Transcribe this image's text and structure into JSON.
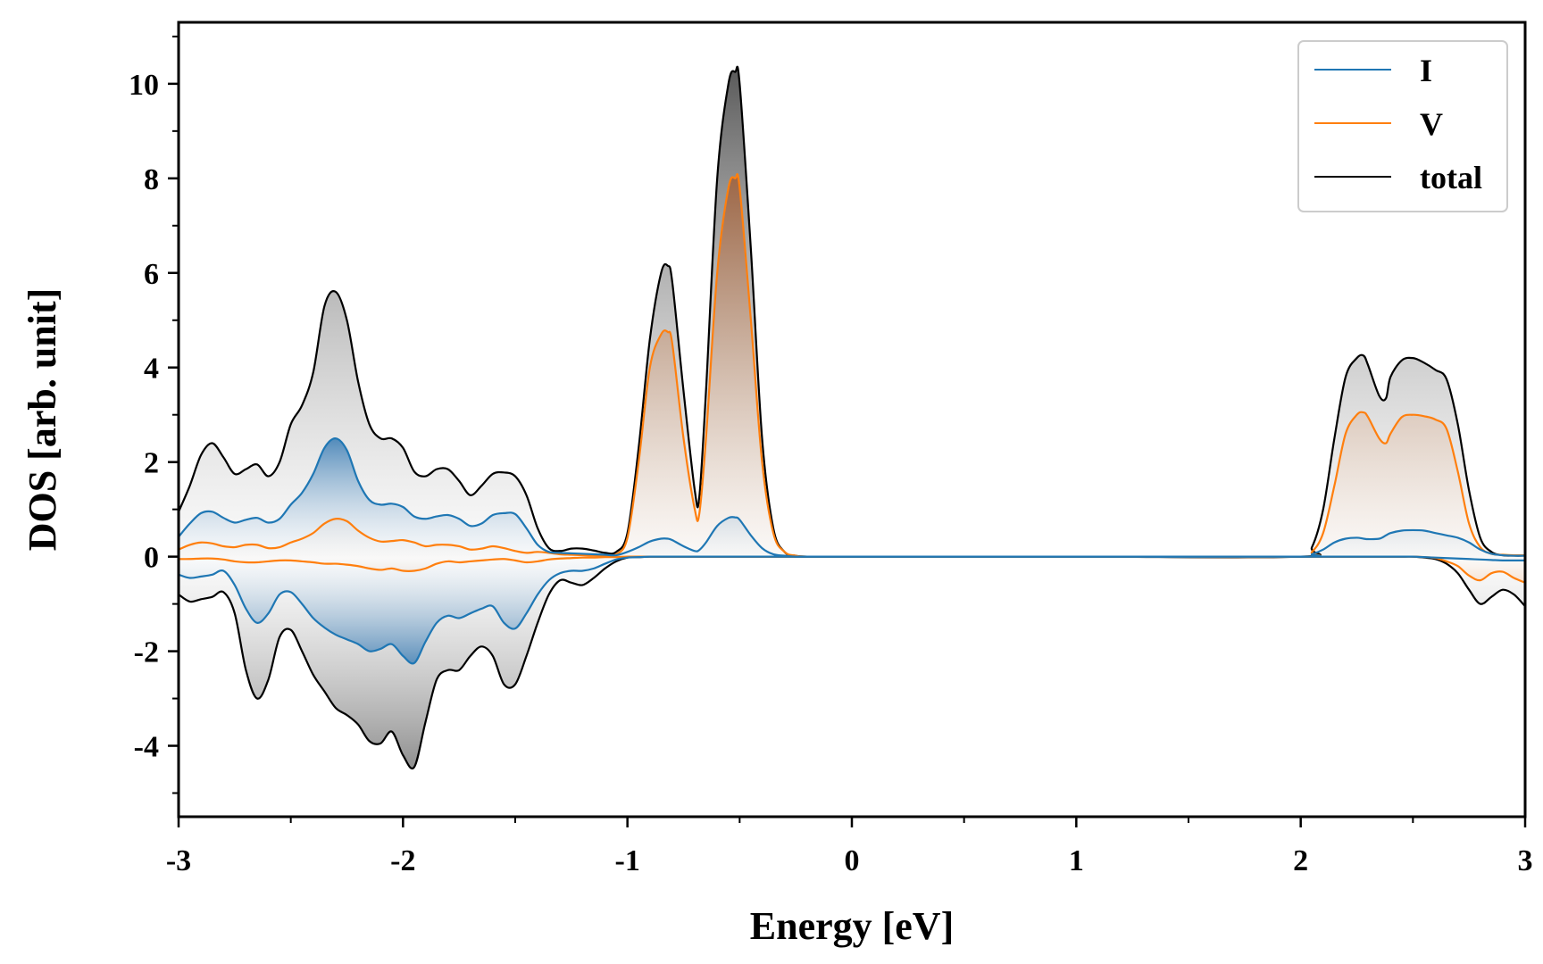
{
  "chart_data": {
    "type": "line",
    "title": "",
    "xlabel": "Energy [eV]",
    "ylabel": "DOS [arb. unit]",
    "xlim": [
      -3,
      3
    ],
    "ylim": [
      -5.5,
      11.3
    ],
    "xticks": [
      -3,
      -2,
      -1,
      0,
      1,
      2,
      3
    ],
    "xtick_labels": [
      "-3",
      "-2",
      "-1",
      "0",
      "1",
      "2",
      "3"
    ],
    "yticks": [
      -4,
      -2,
      0,
      2,
      4,
      6,
      8,
      10
    ],
    "ytick_labels": [
      "-4",
      "-2",
      "0",
      "2",
      "4",
      "6",
      "8",
      "10"
    ],
    "legend_position": "top-right",
    "x": [
      -3.0,
      -2.95,
      -2.9,
      -2.85,
      -2.8,
      -2.75,
      -2.7,
      -2.65,
      -2.6,
      -2.55,
      -2.5,
      -2.45,
      -2.4,
      -2.35,
      -2.3,
      -2.25,
      -2.2,
      -2.15,
      -2.1,
      -2.05,
      -2.0,
      -1.95,
      -1.9,
      -1.85,
      -1.8,
      -1.75,
      -1.7,
      -1.65,
      -1.6,
      -1.55,
      -1.5,
      -1.45,
      -1.4,
      -1.35,
      -1.3,
      -1.25,
      -1.2,
      -1.15,
      -1.1,
      -1.05,
      -1.0,
      -0.95,
      -0.9,
      -0.85,
      -0.82,
      -0.8,
      -0.75,
      -0.7,
      -0.68,
      -0.65,
      -0.6,
      -0.55,
      -0.52,
      -0.5,
      -0.45,
      -0.4,
      -0.35,
      -0.3,
      -0.25,
      -0.2,
      0.0,
      1.0,
      2.0,
      2.05,
      2.1,
      2.15,
      2.2,
      2.25,
      2.28,
      2.3,
      2.35,
      2.38,
      2.4,
      2.45,
      2.5,
      2.55,
      2.6,
      2.65,
      2.7,
      2.75,
      2.8,
      2.85,
      2.9,
      2.95,
      3.0
    ],
    "series": [
      {
        "name": "I",
        "color": "#1f77b4",
        "up": [
          0.42,
          0.7,
          0.92,
          0.95,
          0.82,
          0.72,
          0.78,
          0.82,
          0.72,
          0.8,
          1.1,
          1.35,
          1.75,
          2.3,
          2.5,
          2.25,
          1.6,
          1.2,
          1.1,
          1.12,
          1.05,
          0.85,
          0.8,
          0.85,
          0.88,
          0.8,
          0.65,
          0.7,
          0.88,
          0.92,
          0.9,
          0.6,
          0.25,
          0.1,
          0.08,
          0.07,
          0.06,
          0.05,
          0.04,
          0.03,
          0.1,
          0.2,
          0.32,
          0.38,
          0.38,
          0.35,
          0.22,
          0.12,
          0.14,
          0.3,
          0.65,
          0.82,
          0.83,
          0.78,
          0.45,
          0.18,
          0.05,
          0.02,
          0.0,
          0.0,
          0.0,
          0.0,
          0.0,
          0.05,
          0.15,
          0.3,
          0.38,
          0.4,
          0.38,
          0.37,
          0.38,
          0.45,
          0.5,
          0.55,
          0.56,
          0.55,
          0.5,
          0.45,
          0.4,
          0.3,
          0.15,
          0.06,
          0.03,
          0.02,
          0.02
        ],
        "down": [
          -0.38,
          -0.45,
          -0.42,
          -0.38,
          -0.3,
          -0.6,
          -1.1,
          -1.4,
          -1.2,
          -0.8,
          -0.75,
          -1.0,
          -1.3,
          -1.5,
          -1.65,
          -1.75,
          -1.85,
          -2.0,
          -1.95,
          -1.85,
          -2.1,
          -2.25,
          -1.8,
          -1.4,
          -1.25,
          -1.3,
          -1.2,
          -1.1,
          -1.05,
          -1.4,
          -1.52,
          -1.2,
          -0.8,
          -0.5,
          -0.35,
          -0.3,
          -0.3,
          -0.25,
          -0.15,
          -0.06,
          -0.02,
          -0.01,
          0.0,
          0.0,
          0.0,
          0.0,
          0.0,
          0.0,
          0.0,
          0.0,
          0.0,
          0.0,
          0.0,
          0.0,
          0.0,
          0.0,
          0.0,
          0.0,
          0.0,
          0.0,
          0.0,
          0.0,
          0.0,
          0.0,
          0.0,
          0.0,
          0.0,
          0.0,
          0.0,
          0.0,
          0.0,
          0.0,
          0.0,
          0.0,
          0.0,
          -0.01,
          -0.02,
          -0.03,
          -0.04,
          -0.05,
          -0.06,
          -0.07,
          -0.08,
          -0.08,
          -0.08
        ]
      },
      {
        "name": "V",
        "color": "#ff7f0e",
        "up": [
          0.15,
          0.25,
          0.3,
          0.28,
          0.22,
          0.2,
          0.25,
          0.25,
          0.18,
          0.2,
          0.3,
          0.38,
          0.5,
          0.7,
          0.8,
          0.75,
          0.55,
          0.4,
          0.32,
          0.33,
          0.35,
          0.3,
          0.22,
          0.25,
          0.25,
          0.22,
          0.15,
          0.17,
          0.22,
          0.18,
          0.12,
          0.08,
          0.1,
          0.08,
          0.05,
          0.04,
          0.03,
          0.02,
          0.02,
          0.05,
          0.4,
          2.0,
          4.0,
          4.7,
          4.75,
          4.5,
          2.5,
          1.0,
          0.9,
          2.5,
          6.0,
          7.8,
          8.0,
          7.8,
          5.0,
          2.0,
          0.5,
          0.1,
          0.02,
          0.0,
          0.0,
          0.0,
          0.0,
          0.1,
          0.5,
          1.5,
          2.6,
          3.0,
          3.05,
          2.95,
          2.5,
          2.4,
          2.6,
          2.95,
          3.0,
          2.97,
          2.9,
          2.7,
          1.8,
          0.7,
          0.2,
          0.06,
          0.04,
          0.03,
          0.03
        ],
        "down": [
          -0.05,
          -0.05,
          -0.04,
          -0.04,
          -0.06,
          -0.1,
          -0.12,
          -0.12,
          -0.1,
          -0.08,
          -0.08,
          -0.1,
          -0.12,
          -0.15,
          -0.15,
          -0.17,
          -0.2,
          -0.25,
          -0.28,
          -0.25,
          -0.3,
          -0.3,
          -0.25,
          -0.15,
          -0.1,
          -0.12,
          -0.1,
          -0.08,
          -0.06,
          -0.05,
          -0.08,
          -0.12,
          -0.1,
          -0.06,
          -0.04,
          -0.03,
          -0.02,
          -0.02,
          -0.01,
          -0.01,
          0.0,
          0.0,
          0.0,
          0.0,
          0.0,
          0.0,
          0.0,
          0.0,
          0.0,
          0.0,
          0.0,
          0.0,
          0.0,
          0.0,
          0.0,
          0.0,
          0.0,
          0.0,
          0.0,
          0.0,
          0.0,
          0.0,
          0.0,
          0.0,
          0.0,
          0.0,
          0.0,
          0.0,
          0.0,
          0.0,
          0.0,
          0.0,
          0.0,
          0.0,
          0.0,
          -0.01,
          -0.03,
          -0.1,
          -0.2,
          -0.4,
          -0.5,
          -0.35,
          -0.32,
          -0.45,
          -0.55
        ]
      },
      {
        "name": "total",
        "color": "#000000",
        "up": [
          0.95,
          1.5,
          2.15,
          2.4,
          2.1,
          1.75,
          1.85,
          1.95,
          1.7,
          2.0,
          2.8,
          3.2,
          3.9,
          5.3,
          5.6,
          5.0,
          3.7,
          2.8,
          2.5,
          2.5,
          2.3,
          1.8,
          1.7,
          1.85,
          1.85,
          1.6,
          1.3,
          1.5,
          1.75,
          1.78,
          1.7,
          1.3,
          0.6,
          0.18,
          0.12,
          0.17,
          0.17,
          0.13,
          0.08,
          0.1,
          0.5,
          2.3,
          4.6,
          6.0,
          6.15,
          5.8,
          3.5,
          1.4,
          1.25,
          3.5,
          8.0,
          10.0,
          10.25,
          10.0,
          6.5,
          2.5,
          0.6,
          0.1,
          0.02,
          0.0,
          0.0,
          0.0,
          0.0,
          0.2,
          1.0,
          2.5,
          3.8,
          4.2,
          4.25,
          4.05,
          3.4,
          3.35,
          3.8,
          4.15,
          4.2,
          4.1,
          3.95,
          3.75,
          2.8,
          1.4,
          0.4,
          0.1,
          0.03,
          0.02,
          0.02
        ],
        "down": [
          -0.8,
          -0.95,
          -0.9,
          -0.85,
          -0.75,
          -1.2,
          -2.4,
          -3.0,
          -2.6,
          -1.7,
          -1.55,
          -2.0,
          -2.5,
          -2.85,
          -3.2,
          -3.35,
          -3.55,
          -3.9,
          -3.95,
          -3.7,
          -4.2,
          -4.45,
          -3.5,
          -2.6,
          -2.4,
          -2.4,
          -2.1,
          -1.9,
          -2.1,
          -2.7,
          -2.7,
          -2.1,
          -1.4,
          -0.8,
          -0.5,
          -0.55,
          -0.6,
          -0.45,
          -0.25,
          -0.1,
          -0.02,
          -0.01,
          0.0,
          0.0,
          0.0,
          0.0,
          0.0,
          0.0,
          0.0,
          0.0,
          0.0,
          0.0,
          0.0,
          0.0,
          0.0,
          0.0,
          0.0,
          0.0,
          0.0,
          0.0,
          0.0,
          0.0,
          0.0,
          0.0,
          0.0,
          0.0,
          0.0,
          0.0,
          0.0,
          0.0,
          0.0,
          0.0,
          0.0,
          0.0,
          0.0,
          -0.02,
          -0.05,
          -0.15,
          -0.35,
          -0.7,
          -1.0,
          -0.85,
          -0.7,
          -0.8,
          -1.05
        ]
      }
    ]
  }
}
